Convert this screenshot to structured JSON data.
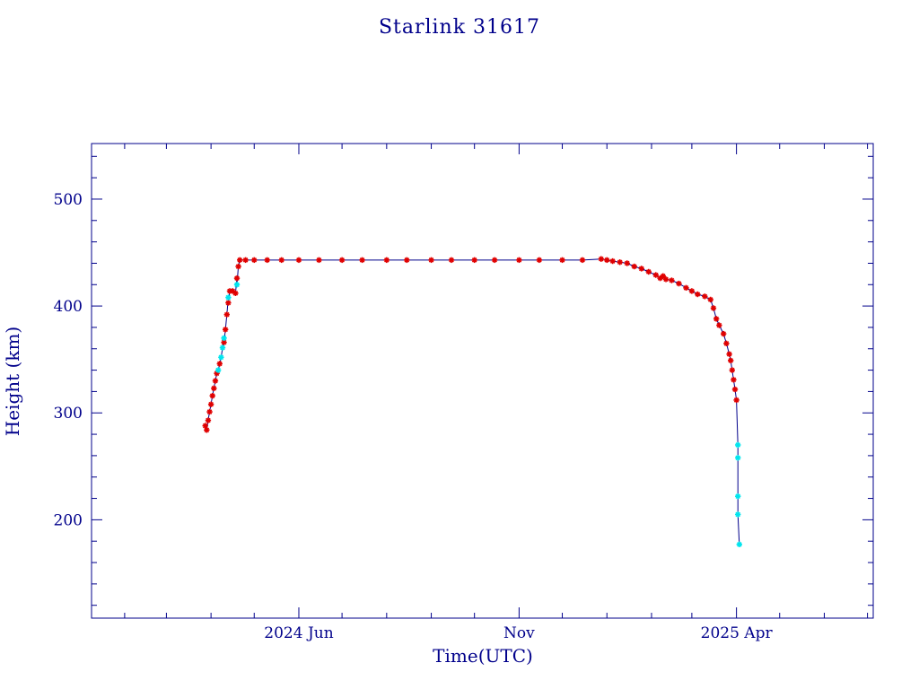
{
  "chart_data": {
    "type": "scatter",
    "title": "Starlink 31617",
    "xlabel": "Time(UTC)",
    "ylabel": "Height (km)",
    "x_unit": "month",
    "xlim": [
      "2024-01-09",
      "2025-07-05"
    ],
    "ylim": [
      108,
      552
    ],
    "x_ticks": [
      {
        "date": "2024-06-01",
        "label": "2024 Jun"
      },
      {
        "date": "2024-11-01",
        "label": "Nov"
      },
      {
        "date": "2025-04-01",
        "label": "2025 Apr"
      }
    ],
    "y_ticks": [
      200,
      300,
      400,
      500
    ],
    "grid": false,
    "colors": {
      "axis": "#00008b",
      "observed_points": "#e00000",
      "predicted_points": "#00e5ee",
      "line": "#00008b"
    },
    "series": [
      {
        "marker": "star",
        "color": "#e00000",
        "points": [
          [
            "2024-03-28",
            288
          ],
          [
            "2024-03-29",
            284
          ],
          [
            "2024-03-30",
            293
          ],
          [
            "2024-03-31",
            301
          ],
          [
            "2024-04-01",
            308
          ],
          [
            "2024-04-02",
            316
          ],
          [
            "2024-04-03",
            323
          ],
          [
            "2024-04-04",
            330
          ],
          [
            "2024-04-05",
            337
          ],
          [
            "2024-04-07",
            346
          ],
          [
            "2024-04-10",
            366
          ],
          [
            "2024-04-11",
            378
          ],
          [
            "2024-04-12",
            392
          ],
          [
            "2024-04-13",
            403
          ],
          [
            "2024-04-14",
            414
          ],
          [
            "2024-04-16",
            414
          ],
          [
            "2024-04-18",
            412
          ],
          [
            "2024-04-19",
            426
          ],
          [
            "2024-04-20",
            437
          ],
          [
            "2024-04-21",
            443
          ],
          [
            "2024-04-25",
            443
          ],
          [
            "2024-05-01",
            443
          ],
          [
            "2024-05-10",
            443
          ],
          [
            "2024-05-20",
            443
          ],
          [
            "2024-06-01",
            443
          ],
          [
            "2024-06-15",
            443
          ],
          [
            "2024-07-01",
            443
          ],
          [
            "2024-07-15",
            443
          ],
          [
            "2024-08-01",
            443
          ],
          [
            "2024-08-15",
            443
          ],
          [
            "2024-09-01",
            443
          ],
          [
            "2024-09-15",
            443
          ],
          [
            "2024-10-01",
            443
          ],
          [
            "2024-10-15",
            443
          ],
          [
            "2024-11-01",
            443
          ],
          [
            "2024-11-15",
            443
          ],
          [
            "2024-12-01",
            443
          ],
          [
            "2024-12-15",
            443
          ],
          [
            "2024-12-28",
            444
          ],
          [
            "2025-01-01",
            443
          ],
          [
            "2025-01-05",
            442
          ],
          [
            "2025-01-10",
            441
          ],
          [
            "2025-01-15",
            440
          ],
          [
            "2025-01-20",
            437
          ],
          [
            "2025-01-25",
            435
          ],
          [
            "2025-01-30",
            432
          ],
          [
            "2025-02-04",
            429
          ],
          [
            "2025-02-07",
            426
          ],
          [
            "2025-02-09",
            428
          ],
          [
            "2025-02-11",
            425
          ],
          [
            "2025-02-15",
            424
          ],
          [
            "2025-02-20",
            421
          ],
          [
            "2025-02-25",
            417
          ],
          [
            "2025-03-01",
            414
          ],
          [
            "2025-03-05",
            411
          ],
          [
            "2025-03-10",
            409
          ],
          [
            "2025-03-14",
            406
          ],
          [
            "2025-03-16",
            398
          ],
          [
            "2025-03-18",
            388
          ],
          [
            "2025-03-20",
            382
          ],
          [
            "2025-03-23",
            374
          ],
          [
            "2025-03-25",
            365
          ],
          [
            "2025-03-27",
            355
          ],
          [
            "2025-03-28",
            349
          ],
          [
            "2025-03-29",
            340
          ],
          [
            "2025-03-30",
            331
          ],
          [
            "2025-03-31",
            322
          ],
          [
            "2025-04-01",
            312
          ]
        ]
      },
      {
        "marker": "star",
        "color": "#00e5ee",
        "points": [
          [
            "2024-04-06",
            340
          ],
          [
            "2024-04-08",
            352
          ],
          [
            "2024-04-09",
            361
          ],
          [
            "2024-04-10",
            370
          ],
          [
            "2024-04-13",
            408
          ],
          [
            "2024-04-19",
            420
          ],
          [
            "2025-04-02",
            270
          ],
          [
            "2025-04-02",
            258
          ],
          [
            "2025-04-02",
            222
          ],
          [
            "2025-04-02",
            205
          ],
          [
            "2025-04-03",
            177
          ]
        ]
      }
    ]
  }
}
